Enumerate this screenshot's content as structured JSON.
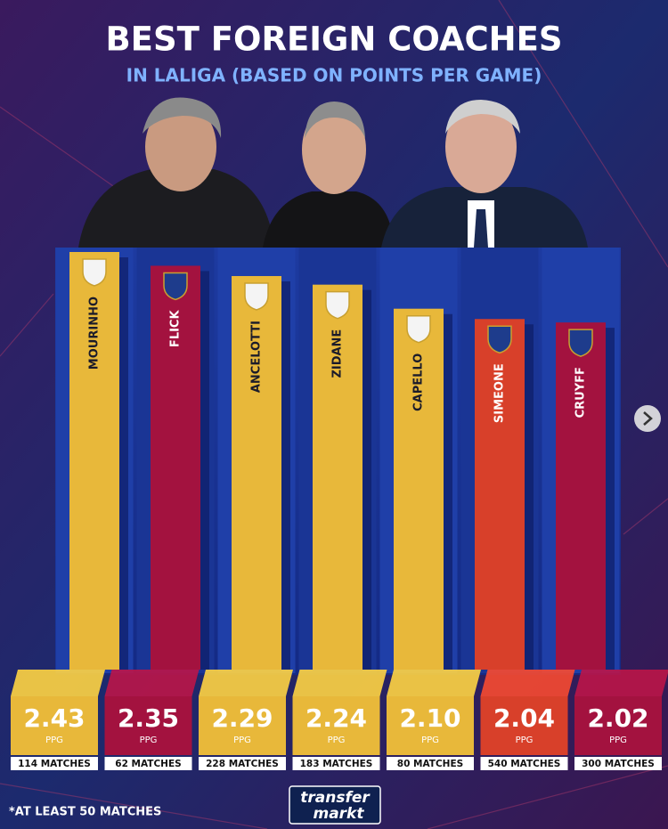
{
  "chart_data": {
    "type": "bar",
    "title": "BEST FOREIGN COACHES",
    "subtitle": "IN LALIGA (BASED ON POINTS PER GAME)",
    "categories": [
      "MOURINHO",
      "FLICK",
      "ANCELOTTI",
      "ZIDANE",
      "CAPELLO",
      "SIMEONE",
      "CRUYFF"
    ],
    "values": [
      2.43,
      2.35,
      2.29,
      2.24,
      2.1,
      2.04,
      2.02
    ],
    "value_labels": [
      "2.43",
      "2.35",
      "2.29",
      "2.24",
      "2.10",
      "2.04",
      "2.02"
    ],
    "unit_label": "PPG",
    "match_labels": [
      "114 MATCHES",
      "62 MATCHES",
      "228 MATCHES",
      "183 MATCHES",
      "80 MATCHES",
      "540 MATCHES",
      "300 MATCHES"
    ],
    "colors": [
      "#e8b83a",
      "#a3123f",
      "#e8b83a",
      "#e8b83a",
      "#e8b83a",
      "#d8402a",
      "#a3123f"
    ],
    "footnote": "*AT LEAST 50 MATCHES",
    "logo": [
      "transfer",
      "markt"
    ]
  }
}
